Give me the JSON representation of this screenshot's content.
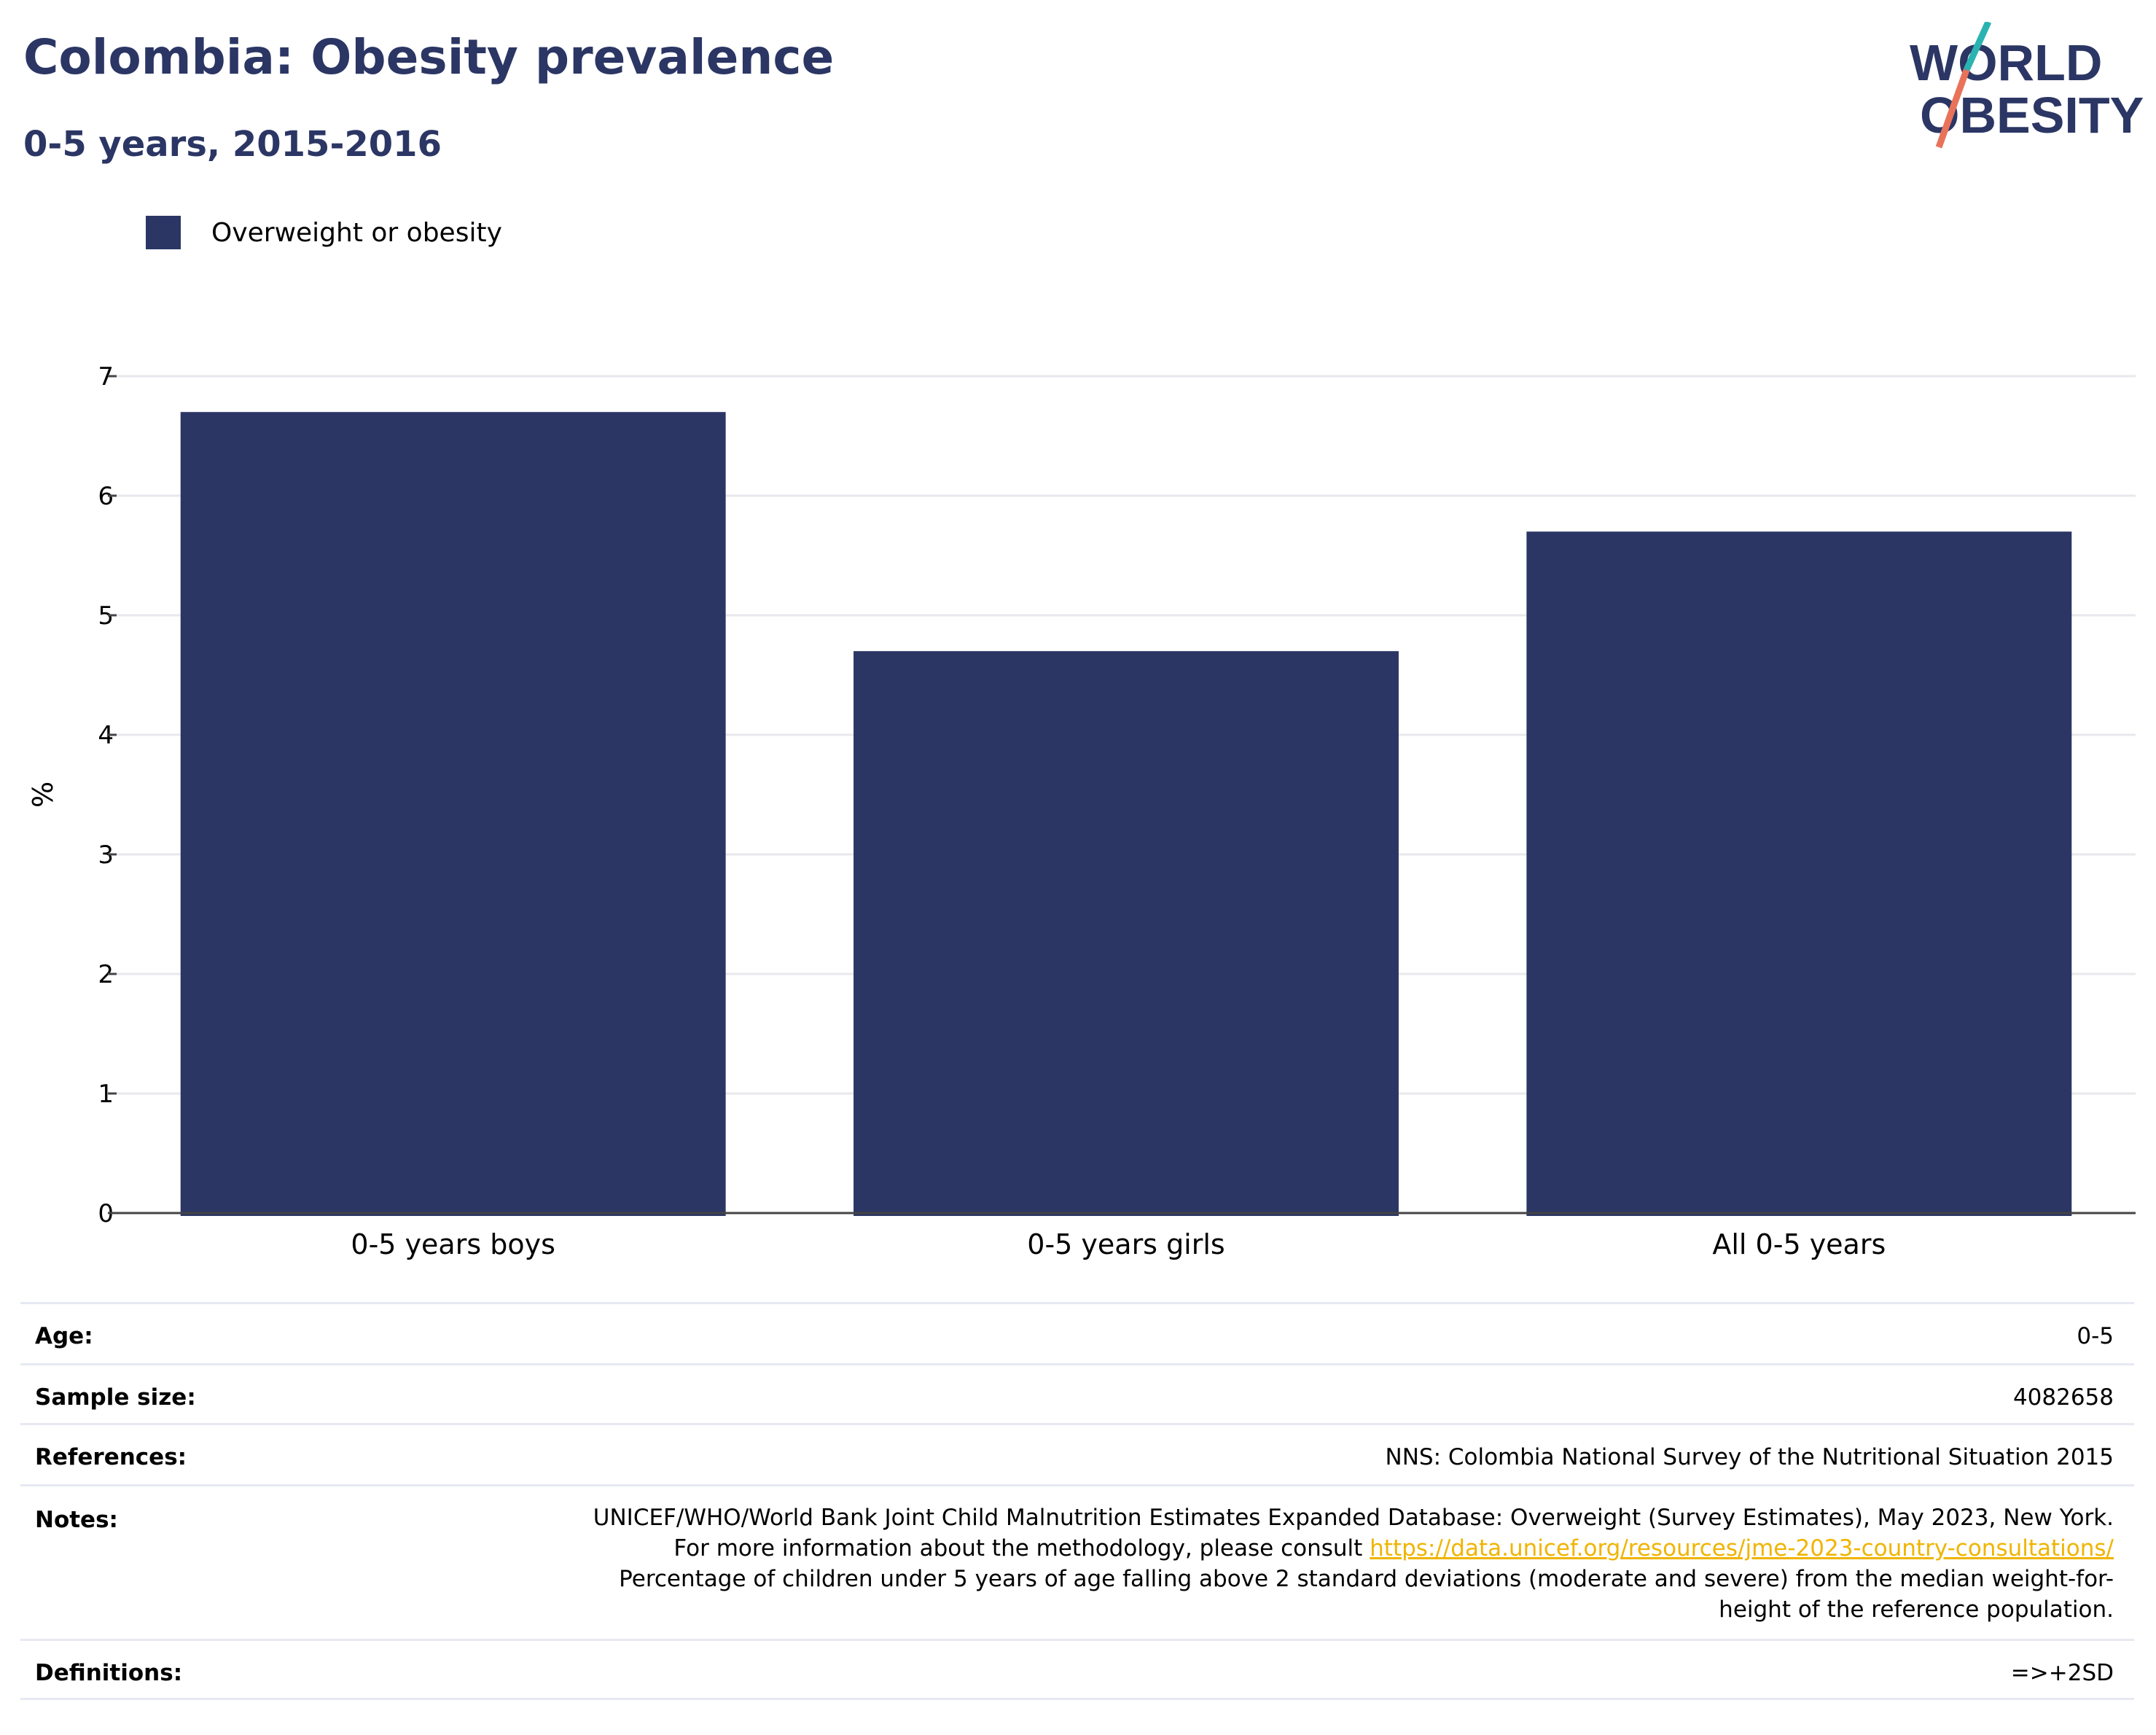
{
  "header": {
    "title": "Colombia: Obesity prevalence",
    "subtitle": "0-5 years, 2015-2016"
  },
  "logo": {
    "line1": "WORLD",
    "line2": "OBESITY"
  },
  "colors": {
    "primary": "#2b3664",
    "teal": "#2bb3b1",
    "coral": "#e8735a",
    "link": "#f0b400"
  },
  "chart_data": {
    "type": "bar",
    "categories": [
      "0-5 years boys",
      "0-5 years girls",
      "All 0-5 years"
    ],
    "series": [
      {
        "name": "Overweight or obesity",
        "values": [
          6.7,
          4.7,
          5.7
        ],
        "color": "#2b3664"
      }
    ],
    "ylabel": "%",
    "xlabel": "",
    "ylim": [
      0,
      7
    ],
    "yticks": [
      "0",
      "1",
      "2",
      "3",
      "4",
      "5",
      "6",
      "7"
    ],
    "grid": true,
    "legend": "top-left"
  },
  "table": {
    "age": {
      "label": "Age:",
      "value": "0-5"
    },
    "sample_size": {
      "label": "Sample size:",
      "value": "4082658"
    },
    "references": {
      "label": "References:",
      "value": "NNS: Colombia National Survey of the Nutritional Situation 2015"
    },
    "notes": {
      "label": "Notes:",
      "text_before": "UNICEF/WHO/World Bank Joint Child Malnutrition Estimates Expanded Database: Overweight (Survey Estimates), May 2023, New York. For more information about the methodology, please consult ",
      "link": "https://data.unicef.org/resources/jme-2023-country-consultations/",
      "text_after": " Percentage of children under 5 years of age falling above 2 standard deviations (moderate and severe) from the median weight-for-height of the reference population."
    },
    "definitions": {
      "label": "Definitions:",
      "value": "=>+2SD"
    }
  }
}
